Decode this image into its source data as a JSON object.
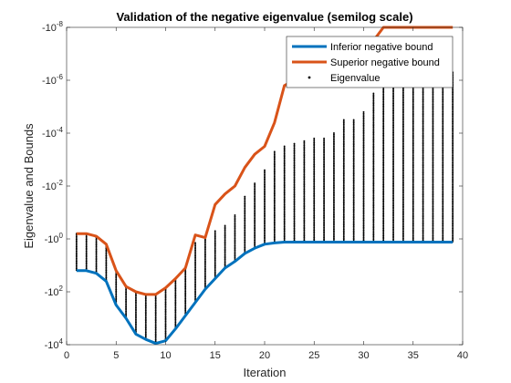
{
  "chart_data": {
    "type": "line",
    "title": "Validation of the negative eigenvalue (semilog scale)",
    "xlabel": "Iteration",
    "ylabel": "Eigenvalue and Bounds",
    "x_ticks": [
      0,
      5,
      10,
      15,
      20,
      25,
      30,
      35,
      40
    ],
    "y_tick_labels": [
      "-10^-8",
      "-10^-6",
      "-10^-4",
      "-10^-2",
      "-10^0",
      "-10^2",
      "-10^4"
    ],
    "y_scale": "log, negative values (-10^-8 at top, -10^4 at bottom)",
    "xlim": [
      0,
      40
    ],
    "ylim_exponent": [
      -8,
      4
    ],
    "legend_position": "top-right",
    "grid": false,
    "x": [
      1,
      2,
      3,
      4,
      5,
      6,
      7,
      8,
      9,
      10,
      11,
      12,
      13,
      14,
      15,
      16,
      17,
      18,
      19,
      20,
      21,
      22,
      23,
      24,
      25,
      26,
      27,
      28,
      29,
      30,
      31,
      32,
      33,
      34,
      35,
      36,
      37,
      38,
      39
    ],
    "series": [
      {
        "name": "Inferior negative bound",
        "color": "#0072BD",
        "style": "line",
        "log10_magnitude": [
          1.2,
          1.2,
          1.3,
          1.6,
          2.5,
          3.0,
          3.6,
          3.8,
          3.95,
          3.85,
          3.4,
          2.9,
          2.4,
          1.9,
          1.5,
          1.1,
          0.85,
          0.55,
          0.35,
          0.2,
          0.15,
          0.12,
          0.12,
          0.12,
          0.12,
          0.12,
          0.12,
          0.12,
          0.12,
          0.12,
          0.12,
          0.12,
          0.12,
          0.12,
          0.12,
          0.12,
          0.12,
          0.12,
          0.12
        ]
      },
      {
        "name": "Superior negative bound",
        "color": "#D95319",
        "style": "line",
        "log10_magnitude": [
          -0.2,
          -0.2,
          -0.1,
          0.2,
          1.2,
          1.8,
          2.0,
          2.1,
          2.1,
          1.85,
          1.5,
          1.1,
          -0.15,
          -0.05,
          -1.3,
          -1.7,
          -2.0,
          -2.7,
          -3.2,
          -3.5,
          -4.4,
          -5.8,
          -6.0,
          -6.5,
          -5.8,
          -6.2,
          -6.6,
          -7.2,
          -7.2,
          -6.5,
          -7.5,
          -8.2,
          -8.2,
          -8.2,
          -8.2,
          -8.2,
          -8.2,
          -8.2,
          -8.2
        ]
      },
      {
        "name": "Eigenvalue",
        "color": "#000000",
        "style": "dots",
        "log10_magnitude_range": [
          [
            -0.2,
            1.2
          ],
          [
            -0.2,
            1.2
          ],
          [
            -0.1,
            1.3
          ],
          [
            0.2,
            1.6
          ],
          [
            1.2,
            2.5
          ],
          [
            1.8,
            3.0
          ],
          [
            2.0,
            3.6
          ],
          [
            2.1,
            3.8
          ],
          [
            2.1,
            3.95
          ],
          [
            1.85,
            3.85
          ],
          [
            1.5,
            3.4
          ],
          [
            1.1,
            2.9
          ],
          [
            0.15,
            2.4
          ],
          [
            -0.05,
            1.9
          ],
          [
            -0.3,
            1.5
          ],
          [
            -0.5,
            1.1
          ],
          [
            -0.9,
            0.85
          ],
          [
            -1.6,
            0.55
          ],
          [
            -2.1,
            0.35
          ],
          [
            -2.6,
            0.2
          ],
          [
            -3.3,
            0.15
          ],
          [
            -3.5,
            0.12
          ],
          [
            -3.6,
            0.12
          ],
          [
            -3.7,
            0.12
          ],
          [
            -3.8,
            0.12
          ],
          [
            -3.8,
            0.12
          ],
          [
            -4.0,
            0.12
          ],
          [
            -4.5,
            0.12
          ],
          [
            -4.5,
            0.12
          ],
          [
            -4.8,
            0.12
          ],
          [
            -5.5,
            0.12
          ],
          [
            -5.8,
            0.12
          ],
          [
            -6.0,
            0.12
          ],
          [
            -6.2,
            0.12
          ],
          [
            -6.3,
            0.12
          ],
          [
            -6.3,
            0.12
          ],
          [
            -6.3,
            0.12
          ],
          [
            -6.3,
            0.12
          ],
          [
            -6.3,
            0.12
          ]
        ]
      }
    ]
  }
}
